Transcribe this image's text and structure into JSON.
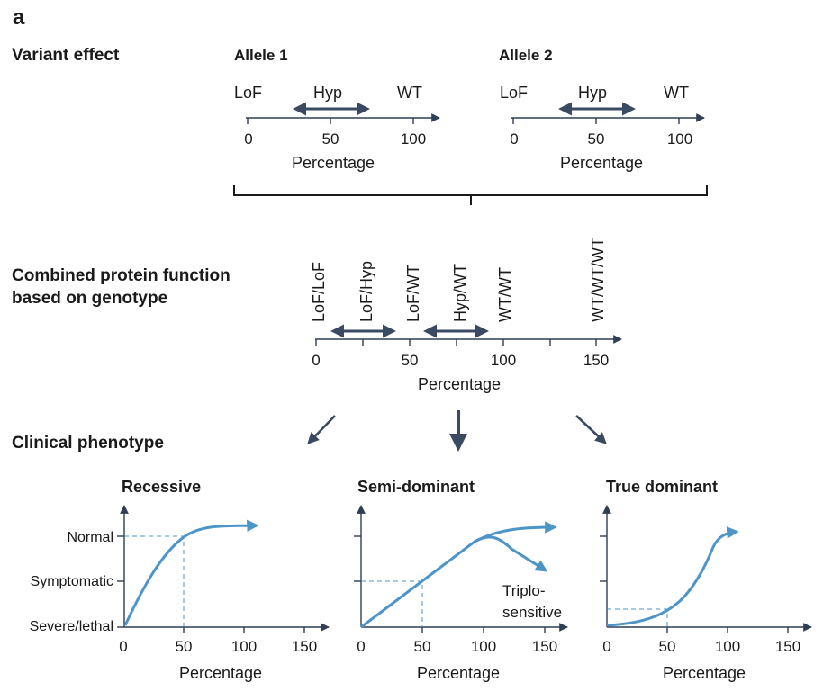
{
  "panel_label": "a",
  "sections": {
    "variant_effect": "Variant effect",
    "combined_line1": "Combined protein function",
    "combined_line2": "based on genotype",
    "clinical": "Clinical phenotype"
  },
  "alleles": [
    {
      "title": "Allele 1",
      "labels": [
        "LoF",
        "Hyp",
        "WT"
      ],
      "ticks": [
        "0",
        "50",
        "100"
      ],
      "xlabel": "Percentage"
    },
    {
      "title": "Allele 2",
      "labels": [
        "LoF",
        "Hyp",
        "WT"
      ],
      "ticks": [
        "0",
        "50",
        "100"
      ],
      "xlabel": "Percentage"
    }
  ],
  "combined": {
    "genotypes": [
      "LoF/LoF",
      "LoF/Hyp",
      "LoF/WT",
      "Hyp/WT",
      "WT/WT",
      "WT/WT/WT"
    ],
    "ticks": [
      "0",
      "50",
      "100",
      "150"
    ],
    "xlabel": "Percentage"
  },
  "phenotype_levels": [
    "Normal",
    "Symptomatic",
    "Severe/lethal"
  ],
  "phenotype_charts": [
    {
      "title": "Recessive",
      "ticks": [
        "0",
        "50",
        "100",
        "150"
      ],
      "xlabel": "Percentage"
    },
    {
      "title": "Semi-dominant",
      "ticks": [
        "0",
        "50",
        "100",
        "150"
      ],
      "xlabel": "Percentage",
      "annotation_line1": "Triplo-",
      "annotation_line2": "sensitive"
    },
    {
      "title": "True dominant",
      "ticks": [
        "0",
        "50",
        "100",
        "150"
      ],
      "xlabel": "Percentage"
    }
  ],
  "colors": {
    "curve": "#4d94c8",
    "arrow": "#3a4a63",
    "axis": "#2d3e55"
  }
}
